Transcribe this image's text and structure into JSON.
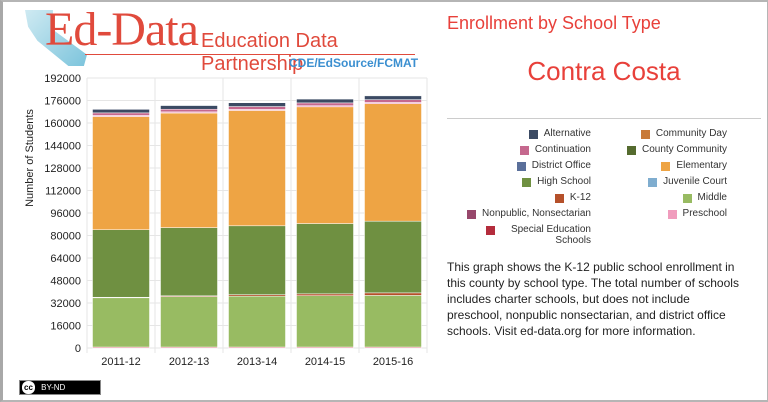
{
  "logo": {
    "brand": "Ed-Data",
    "subtitle": "Education Data Partnership",
    "sources": "CDE/EdSource/FCMAT"
  },
  "header": {
    "title": "Enrollment by School Type",
    "county": "Contra Costa"
  },
  "legend": [
    {
      "label": "Alternative",
      "color": "#3b4a63"
    },
    {
      "label": "Community Day",
      "color": "#c87a38"
    },
    {
      "label": "Continuation",
      "color": "#c5688e"
    },
    {
      "label": "County Community",
      "color": "#556b2f"
    },
    {
      "label": "District Office",
      "color": "#5a6f9a"
    },
    {
      "label": "Elementary",
      "color": "#eea444"
    },
    {
      "label": "High School",
      "color": "#6f9041"
    },
    {
      "label": "Juvenile Court",
      "color": "#7fadcf"
    },
    {
      "label": "K-12",
      "color": "#b5502a"
    },
    {
      "label": "Middle",
      "color": "#98bb62"
    },
    {
      "label": "Nonpublic, Nonsectarian",
      "color": "#97476b"
    },
    {
      "label": "Preschool",
      "color": "#f09cbd"
    },
    {
      "label": "Special Education Schools",
      "color": "#b42c3c"
    }
  ],
  "description": "This graph shows the K-12 public school enrollment in this county by school type. The total number of schools includes charter schools, but does not include preschool, nonpublic nonsectarian, and district office schools. Visit ed-data.org for more information.",
  "license": {
    "cc": "cc",
    "label": "BY-ND"
  },
  "chart_data": {
    "type": "bar",
    "stacked": true,
    "title": "Enrollment by School Type",
    "xlabel": "",
    "ylabel": "Number of Students",
    "ylim": [
      0,
      192000
    ],
    "yticks": [
      0,
      16000,
      32000,
      48000,
      64000,
      80000,
      96000,
      112000,
      128000,
      144000,
      160000,
      176000,
      192000
    ],
    "categories": [
      "2011-12",
      "2012-13",
      "2013-14",
      "2014-15",
      "2015-16"
    ],
    "series": [
      {
        "name": "Special Education Schools",
        "color": "#d9475a",
        "values": [
          700,
          700,
          700,
          700,
          700
        ]
      },
      {
        "name": "Middle",
        "color": "#98bb62",
        "values": [
          35000,
          35800,
          36200,
          36500,
          36700
        ]
      },
      {
        "name": "K-12",
        "color": "#b5502a",
        "values": [
          400,
          600,
          1000,
          1300,
          1800
        ]
      },
      {
        "name": "High School",
        "color": "#6f9041",
        "values": [
          48000,
          48500,
          49000,
          50000,
          51000
        ]
      },
      {
        "name": "Elementary",
        "color": "#eea444",
        "values": [
          80500,
          81500,
          82000,
          83000,
          83500
        ]
      },
      {
        "name": "Nonpublic, Nonsectarian",
        "color": "#f09cbd",
        "values": [
          800,
          800,
          800,
          800,
          900
        ]
      },
      {
        "name": "Continuation",
        "color": "#c5688e",
        "values": [
          1800,
          1900,
          2000,
          2000,
          2000
        ]
      },
      {
        "name": "Alternative",
        "color": "#3b4a63",
        "values": [
          2500,
          2600,
          2700,
          2700,
          2700
        ]
      }
    ]
  }
}
